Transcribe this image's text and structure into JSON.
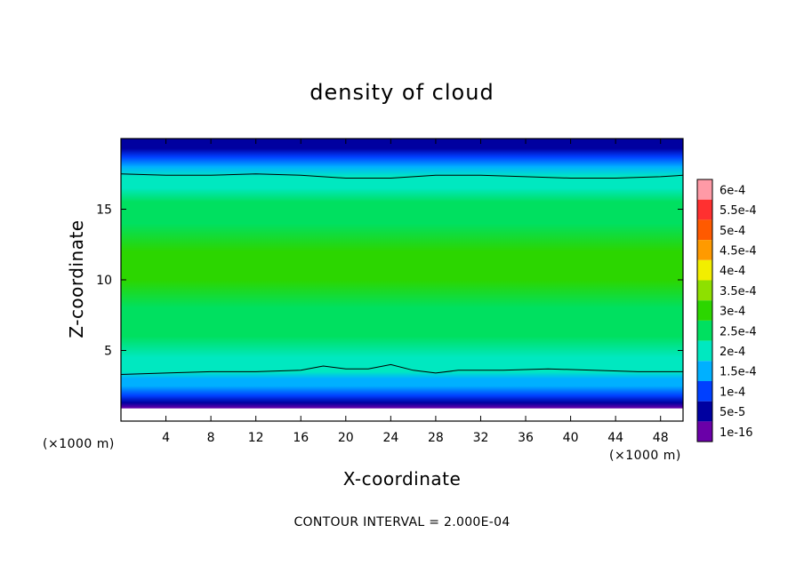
{
  "chart_data": {
    "type": "heatmap",
    "title": "density of cloud",
    "xlabel": "X-coordinate",
    "ylabel": "Z-coordinate",
    "x_unit": "(×1000 m)",
    "y_unit": "(×1000 m)",
    "xlim": [
      0,
      50
    ],
    "ylim": [
      0,
      20
    ],
    "xticks": [
      4,
      8,
      12,
      16,
      20,
      24,
      28,
      32,
      36,
      40,
      44,
      48
    ],
    "yticks": [
      5,
      10,
      15
    ],
    "footer": "CONTOUR INTERVAL = 2.000E-04",
    "colorbar": {
      "labels": [
        "6e-4",
        "5.5e-4",
        "5e-4",
        "4.5e-4",
        "4e-4",
        "3.5e-4",
        "3e-4",
        "2.5e-4",
        "2e-4",
        "1.5e-4",
        "1e-4",
        "5e-5",
        "1e-16"
      ],
      "colors": [
        "#ff9aa6",
        "#ff3030",
        "#ff5a00",
        "#ff9a00",
        "#f2ee00",
        "#8ee000",
        "#2cd600",
        "#00e060",
        "#00e8c0",
        "#00b0ff",
        "#0040ff",
        "#0000a0",
        "#6a00a8"
      ]
    },
    "profile": {
      "z": [
        0.9,
        1.3,
        1.8,
        2.5,
        3.0,
        3.5,
        4.5,
        6.0,
        8.0,
        10.0,
        12.0,
        14.0,
        15.5,
        16.5,
        17.3,
        18.0,
        18.7,
        19.3,
        19.6
      ],
      "values": [
        0.0,
        5e-05,
        0.0001,
        0.00015,
        0.00018,
        0.0002,
        0.00024,
        0.00027,
        0.00029,
        0.0003,
        0.0003,
        0.00029,
        0.00027,
        0.00024,
        0.0002,
        0.00016,
        0.00012,
        8e-05,
        5e-05
      ]
    },
    "contours": [
      {
        "level": 0.0002,
        "x": [
          0,
          4,
          8,
          12,
          16,
          18,
          20,
          22,
          24,
          26,
          28,
          30,
          34,
          38,
          42,
          46,
          50
        ],
        "z": [
          3.3,
          3.4,
          3.5,
          3.5,
          3.6,
          3.9,
          3.7,
          3.7,
          4.0,
          3.6,
          3.4,
          3.6,
          3.6,
          3.7,
          3.6,
          3.5,
          3.5
        ]
      },
      {
        "level": 0.0002,
        "x": [
          0,
          4,
          8,
          12,
          16,
          20,
          24,
          28,
          32,
          36,
          40,
          44,
          48,
          50
        ],
        "z": [
          17.5,
          17.4,
          17.4,
          17.5,
          17.4,
          17.2,
          17.2,
          17.4,
          17.4,
          17.3,
          17.2,
          17.2,
          17.3,
          17.4
        ]
      }
    ]
  }
}
